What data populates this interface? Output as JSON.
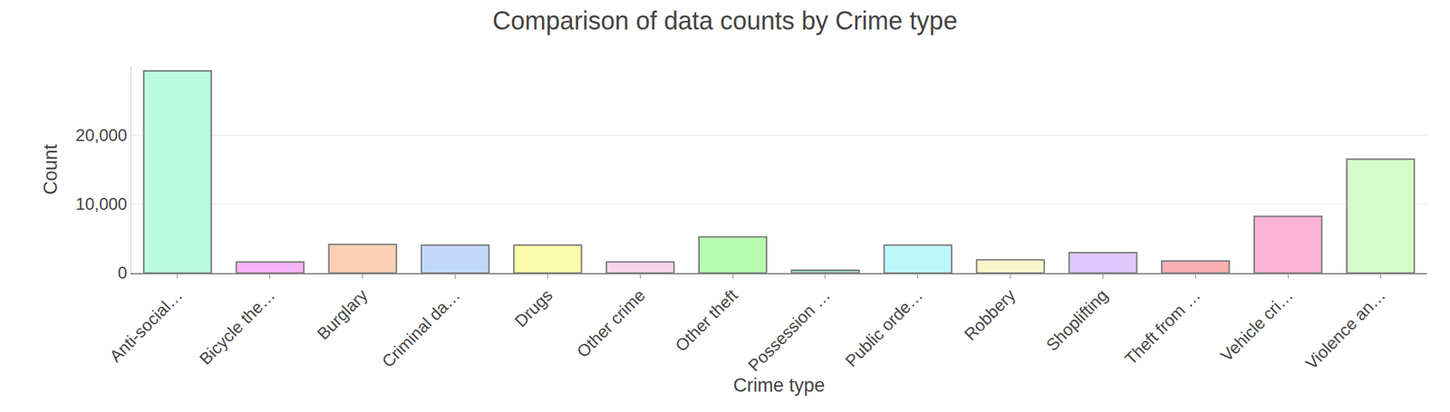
{
  "chart_data": {
    "type": "bar",
    "title": "Comparison of data counts by Crime type",
    "x_label": "Crime type",
    "y_label": "Count",
    "categories": [
      "Anti-social…",
      "Bicycle the…",
      "Burglary",
      "Criminal da…",
      "Drugs",
      "Other crime",
      "Other theft",
      "Possession …",
      "Public orde…",
      "Robbery",
      "Shoplifting",
      "Theft from …",
      "Vehicle cri…",
      "Violence an…"
    ],
    "values": [
      29300,
      1600,
      4150,
      4050,
      4050,
      1600,
      5250,
      400,
      4050,
      1900,
      2950,
      1750,
      8200,
      16500
    ],
    "colors": [
      "#b9fbe0",
      "#f7b3f5",
      "#fdd0b5",
      "#c2d9fb",
      "#f8fbaa",
      "#fad4ec",
      "#b8fcb0",
      "#9fd9c4",
      "#bdf8fb",
      "#fdf6cc",
      "#dfc8fb",
      "#f9b0b0",
      "#fdb3d8",
      "#d5fcc8"
    ],
    "ylim": [
      0,
      30000
    ],
    "yticks": [
      0,
      {
        "value": 10000,
        "label": "10,000"
      },
      {
        "value": 20000,
        "label": "20,000"
      }
    ],
    "grid": true
  }
}
